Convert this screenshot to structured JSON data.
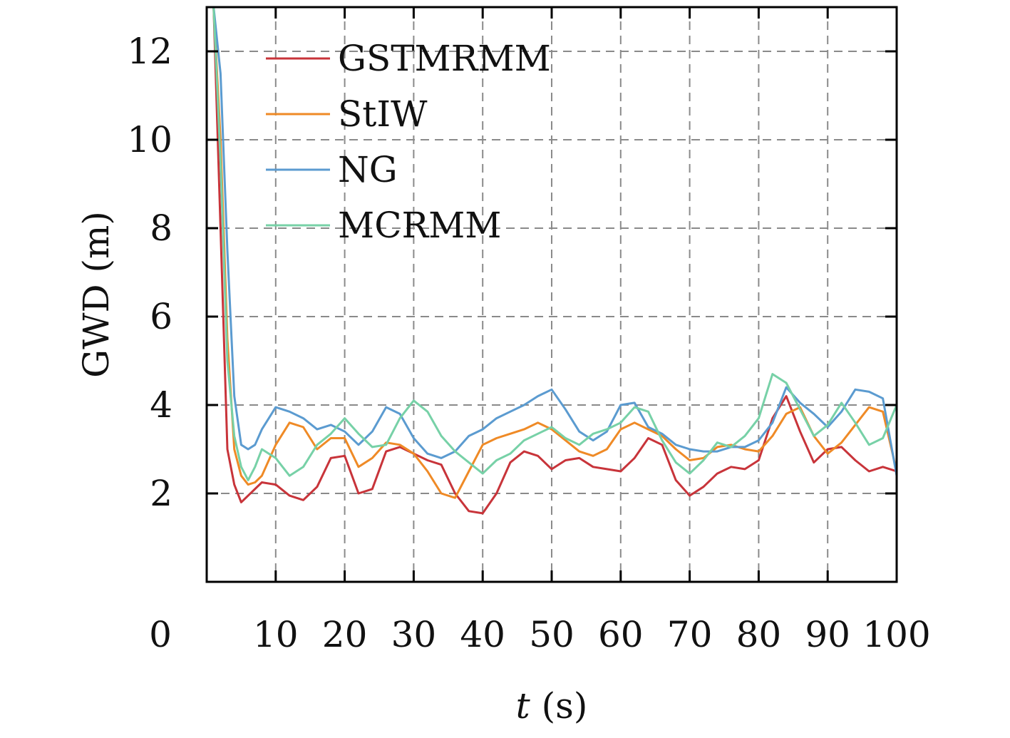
{
  "chart_data": {
    "type": "line",
    "title": "",
    "xlabel_var": "t",
    "xlabel_unit": "(s)",
    "ylabel": "GWD (m)",
    "xlim": [
      0,
      100
    ],
    "ylim": [
      0,
      13
    ],
    "x_zero_label": "0",
    "xticks": [
      10,
      20,
      30,
      40,
      50,
      60,
      70,
      80,
      90,
      100
    ],
    "yticks": [
      2,
      4,
      6,
      8,
      10,
      12
    ],
    "grid": true,
    "legend_position": "top-left",
    "series": [
      {
        "name": "GSTMRMM",
        "color": "#c8343a",
        "x": [
          1,
          2,
          3,
          4,
          5,
          6,
          8,
          10,
          12,
          14,
          16,
          18,
          20,
          22,
          24,
          26,
          28,
          30,
          32,
          34,
          36,
          38,
          40,
          42,
          44,
          46,
          48,
          50,
          52,
          54,
          56,
          58,
          60,
          62,
          64,
          66,
          68,
          70,
          72,
          74,
          76,
          78,
          80,
          82,
          84,
          86,
          88,
          90,
          92,
          94,
          96,
          98,
          100
        ],
        "y": [
          13,
          8.0,
          3.0,
          2.2,
          1.8,
          1.95,
          2.25,
          2.2,
          1.95,
          1.85,
          2.15,
          2.8,
          2.85,
          2.0,
          2.1,
          2.95,
          3.05,
          2.9,
          2.75,
          2.65,
          2.0,
          1.6,
          1.55,
          2.0,
          2.7,
          2.95,
          2.85,
          2.55,
          2.75,
          2.8,
          2.6,
          2.55,
          2.5,
          2.8,
          3.25,
          3.1,
          2.3,
          1.95,
          2.15,
          2.45,
          2.6,
          2.55,
          2.75,
          3.7,
          4.2,
          3.4,
          2.7,
          3.0,
          3.05,
          2.75,
          2.5,
          2.6,
          2.5
        ]
      },
      {
        "name": "StIW",
        "color": "#ef8a26",
        "x": [
          1,
          2,
          3,
          4,
          5,
          6,
          7,
          8,
          10,
          12,
          14,
          16,
          18,
          20,
          22,
          24,
          26,
          28,
          30,
          32,
          34,
          36,
          38,
          40,
          42,
          44,
          46,
          48,
          50,
          52,
          54,
          56,
          58,
          60,
          62,
          64,
          66,
          68,
          70,
          72,
          74,
          76,
          78,
          80,
          82,
          84,
          86,
          88,
          90,
          92,
          94,
          96,
          98,
          100
        ],
        "y": [
          13,
          10.0,
          5.5,
          3.0,
          2.4,
          2.2,
          2.25,
          2.4,
          3.1,
          3.6,
          3.5,
          3.0,
          3.25,
          3.25,
          2.6,
          2.8,
          3.15,
          3.1,
          2.9,
          2.5,
          2.0,
          1.9,
          2.5,
          3.1,
          3.25,
          3.35,
          3.45,
          3.6,
          3.45,
          3.2,
          2.95,
          2.85,
          3.0,
          3.45,
          3.6,
          3.45,
          3.3,
          3.0,
          2.75,
          2.8,
          3.05,
          3.1,
          3.0,
          2.95,
          3.3,
          3.8,
          3.95,
          3.3,
          2.9,
          3.15,
          3.55,
          3.95,
          3.85,
          2.5
        ]
      },
      {
        "name": "NG",
        "color": "#5b9bd0",
        "x": [
          1,
          2,
          3,
          4,
          5,
          6,
          7,
          8,
          10,
          12,
          14,
          16,
          18,
          20,
          22,
          24,
          26,
          28,
          30,
          32,
          34,
          36,
          38,
          40,
          42,
          44,
          46,
          48,
          50,
          52,
          54,
          56,
          58,
          60,
          62,
          64,
          66,
          68,
          70,
          72,
          74,
          76,
          78,
          80,
          82,
          84,
          86,
          88,
          90,
          92,
          94,
          96,
          98,
          100
        ],
        "y": [
          13,
          11.5,
          7.5,
          4.2,
          3.1,
          3.0,
          3.1,
          3.45,
          3.95,
          3.85,
          3.7,
          3.45,
          3.55,
          3.4,
          3.1,
          3.4,
          3.95,
          3.8,
          3.25,
          2.9,
          2.8,
          2.95,
          3.3,
          3.45,
          3.7,
          3.85,
          4.0,
          4.2,
          4.35,
          3.9,
          3.4,
          3.2,
          3.4,
          4.0,
          4.05,
          3.5,
          3.35,
          3.1,
          3.0,
          2.95,
          2.95,
          3.05,
          3.05,
          3.2,
          3.6,
          4.4,
          4.05,
          3.8,
          3.5,
          3.85,
          4.35,
          4.3,
          4.15,
          2.4
        ]
      },
      {
        "name": "MCRMM",
        "color": "#77d1a7",
        "x": [
          1,
          2,
          3,
          4,
          5,
          6,
          7,
          8,
          10,
          12,
          14,
          16,
          18,
          20,
          22,
          24,
          26,
          28,
          30,
          32,
          34,
          36,
          38,
          40,
          42,
          44,
          46,
          48,
          50,
          52,
          54,
          56,
          58,
          60,
          62,
          64,
          66,
          68,
          70,
          72,
          74,
          76,
          78,
          80,
          82,
          84,
          86,
          88,
          90,
          92,
          94,
          96,
          98,
          100
        ],
        "y": [
          13,
          9.5,
          5.0,
          3.3,
          2.6,
          2.3,
          2.6,
          3.0,
          2.8,
          2.4,
          2.6,
          3.1,
          3.35,
          3.7,
          3.35,
          3.05,
          3.1,
          3.7,
          4.1,
          3.85,
          3.3,
          2.95,
          2.7,
          2.45,
          2.75,
          2.9,
          3.2,
          3.35,
          3.5,
          3.25,
          3.1,
          3.35,
          3.45,
          3.6,
          3.95,
          3.85,
          3.2,
          2.7,
          2.45,
          2.75,
          3.15,
          3.05,
          3.3,
          3.7,
          4.7,
          4.5,
          3.9,
          3.3,
          3.55,
          4.05,
          3.6,
          3.1,
          3.25,
          4.0
        ]
      }
    ]
  }
}
